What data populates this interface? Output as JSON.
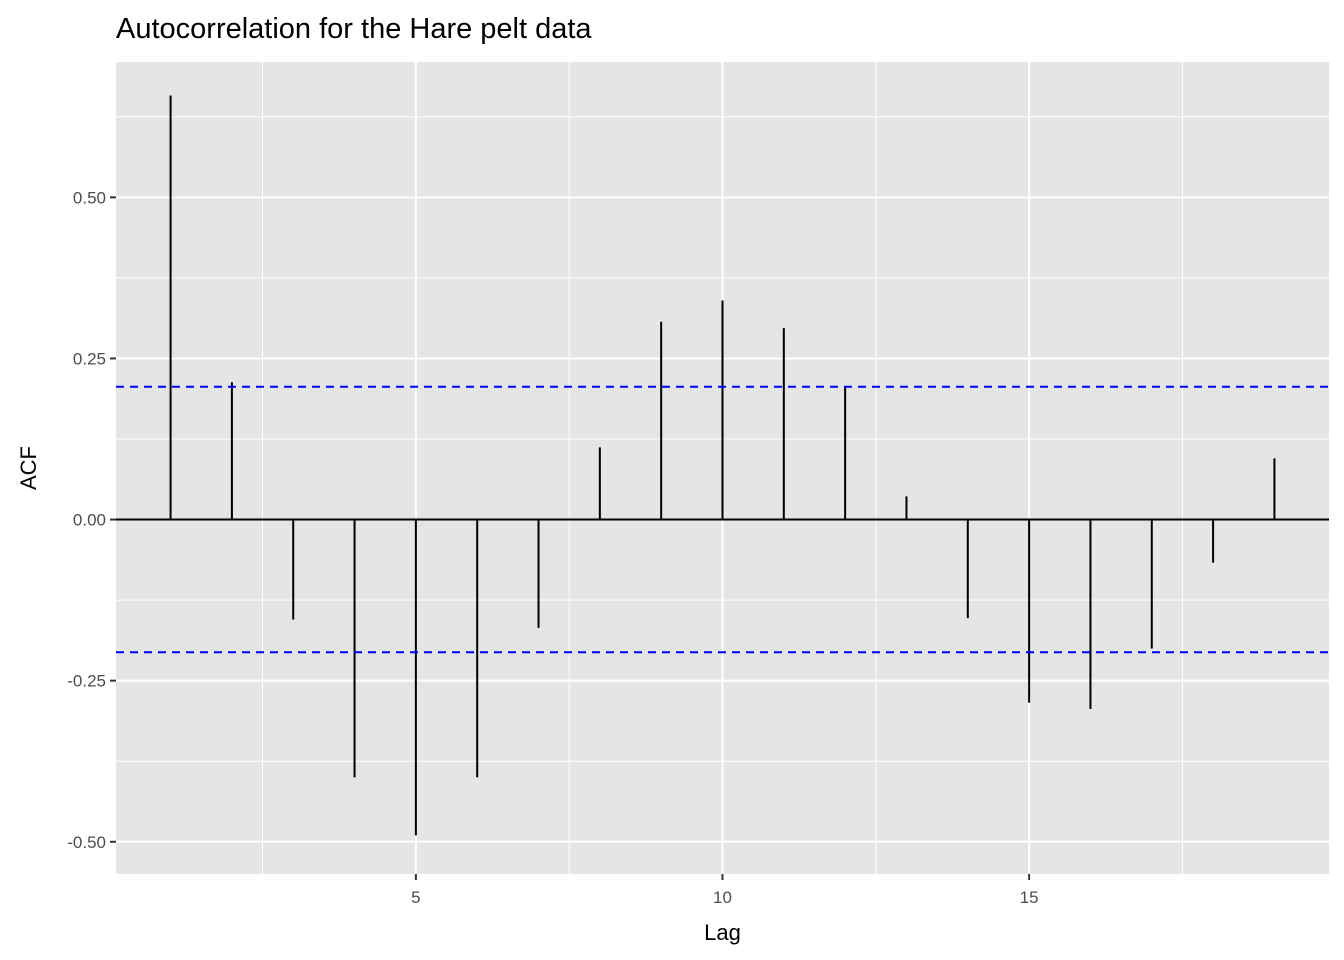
{
  "chart_data": {
    "type": "bar",
    "title": "Autocorrelation for the Hare pelt data",
    "xlabel": "Lag",
    "ylabel": "ACF",
    "x": [
      1,
      2,
      3,
      4,
      5,
      6,
      7,
      8,
      9,
      10,
      11,
      12,
      13,
      14,
      15,
      16,
      17,
      18,
      19
    ],
    "values": [
      0.658,
      0.213,
      -0.155,
      -0.4,
      -0.49,
      -0.4,
      -0.168,
      0.112,
      0.307,
      0.34,
      0.297,
      0.205,
      0.036,
      -0.153,
      -0.284,
      -0.294,
      -0.2,
      -0.067,
      0.095
    ],
    "confidence_bound": 0.206,
    "xlim": [
      0.11,
      19.89
    ],
    "ylim": [
      -0.55,
      0.71
    ],
    "x_ticks": [
      5,
      10,
      15
    ],
    "x_tick_labels": [
      "5",
      "10",
      "15"
    ],
    "y_ticks": [
      0.5,
      0.25,
      0.0,
      -0.25,
      -0.5
    ],
    "y_tick_labels": [
      "0.50",
      "0.25",
      "0.00",
      "-0.25",
      "-0.50"
    ],
    "grid": true,
    "colors": {
      "panel_background": "#e5e5e5",
      "grid": "#ffffff",
      "bars": "#000000",
      "confidence_lines": "#0000ff"
    }
  }
}
